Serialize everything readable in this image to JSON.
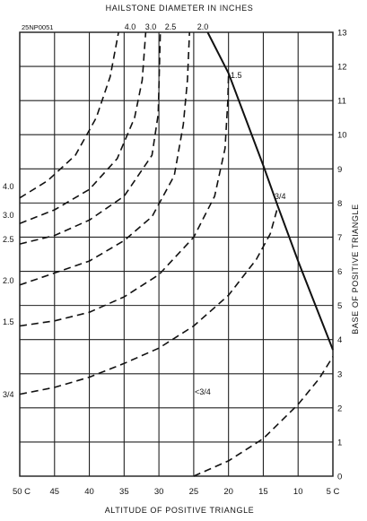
{
  "chart_data": {
    "type": "line",
    "title": "HAILSTONE DIAMETER IN INCHES",
    "figure_id": "25NP0051",
    "xlabel": "ALTITUDE OF POSITIVE TRIANGLE",
    "ylabel": "BASE OF POSITIVE TRIANGLE",
    "xlim": [
      50,
      5
    ],
    "ylim": [
      0,
      13
    ],
    "grid": true,
    "x_ticks": [
      "50 C",
      "45",
      "40",
      "35",
      "30",
      "25",
      "20",
      "15",
      "10",
      "5 C"
    ],
    "y_ticks": [
      "0",
      "1",
      "2",
      "3",
      "4",
      "5",
      "6",
      "7",
      "8",
      "9",
      "10",
      "11",
      "12",
      "13"
    ],
    "top_curve_labels": [
      "4.0",
      "3.0",
      "2.5",
      "2.0"
    ],
    "left_curve_labels": [
      "4.0",
      "3.0",
      "2.5",
      "2.0",
      "1.5",
      "3/4"
    ],
    "inline_labels": [
      "1.5",
      "3/4",
      "<3/4"
    ],
    "series": [
      {
        "name": "4.0",
        "style": "dashed",
        "points": [
          [
            50,
            8.15
          ],
          [
            46,
            8.65
          ],
          [
            42,
            9.4
          ],
          [
            39,
            10.5
          ],
          [
            37,
            11.7
          ],
          [
            35.8,
            13
          ]
        ]
      },
      {
        "name": "3.0",
        "style": "dashed",
        "points": [
          [
            50,
            7.4
          ],
          [
            45,
            7.8
          ],
          [
            40,
            8.4
          ],
          [
            36,
            9.3
          ],
          [
            33.5,
            10.5
          ],
          [
            32.4,
            11.6
          ],
          [
            31.9,
            13
          ]
        ]
      },
      {
        "name": "2.5",
        "style": "dashed",
        "points": [
          [
            50,
            6.8
          ],
          [
            45,
            7.05
          ],
          [
            40,
            7.5
          ],
          [
            35,
            8.2
          ],
          [
            31,
            9.4
          ],
          [
            30.1,
            10.6
          ],
          [
            29.8,
            13
          ]
        ]
      },
      {
        "name": "2.0",
        "style": "dashed",
        "points": [
          [
            50,
            5.6
          ],
          [
            45,
            5.95
          ],
          [
            40,
            6.3
          ],
          [
            35,
            6.9
          ],
          [
            31,
            7.6
          ],
          [
            27.8,
            8.8
          ],
          [
            26.5,
            10.3
          ],
          [
            25.9,
            11.6
          ],
          [
            25.6,
            13
          ]
        ]
      },
      {
        "name": "1.5",
        "style": "dashed",
        "points": [
          [
            50,
            4.4
          ],
          [
            45,
            4.55
          ],
          [
            40,
            4.8
          ],
          [
            35,
            5.25
          ],
          [
            30,
            5.9
          ],
          [
            25,
            7.0
          ],
          [
            22,
            8.2
          ],
          [
            20.5,
            9.6
          ],
          [
            20.1,
            11.0
          ],
          [
            20,
            11.8
          ]
        ]
      },
      {
        "name": "3/4",
        "style": "dashed",
        "points": [
          [
            50,
            2.4
          ],
          [
            45,
            2.6
          ],
          [
            40,
            2.9
          ],
          [
            35,
            3.3
          ],
          [
            30,
            3.75
          ],
          [
            25,
            4.4
          ],
          [
            20,
            5.3
          ],
          [
            16,
            6.35
          ],
          [
            14,
            7.1
          ],
          [
            12.9,
            7.9
          ]
        ]
      },
      {
        "name": "<3/4",
        "style": "dashed",
        "points": [
          [
            25,
            0
          ],
          [
            20,
            0.45
          ],
          [
            15,
            1.1
          ],
          [
            10,
            2.1
          ],
          [
            7,
            2.85
          ],
          [
            5,
            3.5
          ]
        ]
      },
      {
        "name": "",
        "style": "solid",
        "points": [
          [
            23,
            13
          ],
          [
            20,
            11.8
          ],
          [
            15,
            9.1
          ],
          [
            12.9,
            7.9
          ],
          [
            10,
            6.3
          ],
          [
            5,
            3.7
          ]
        ]
      }
    ]
  }
}
